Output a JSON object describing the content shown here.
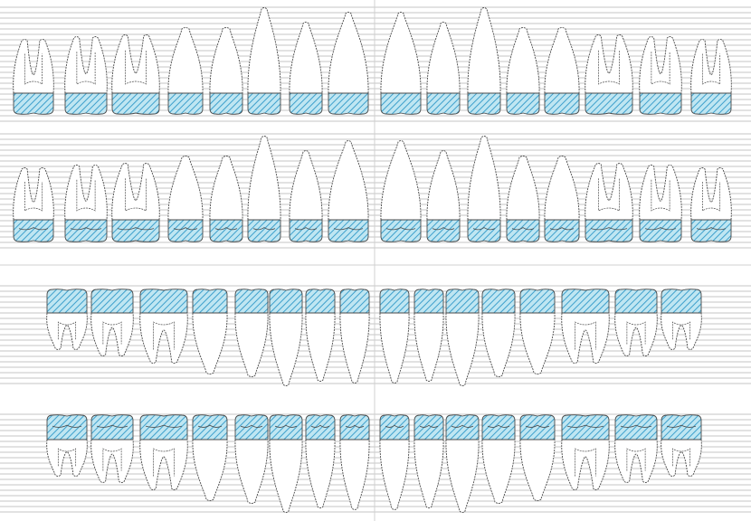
{
  "diagram": {
    "colors": {
      "background": "#ffffff",
      "grid_line": "#c6c6c6",
      "divider": "#d0d0d0",
      "outline": "#4a4a4a",
      "hatch_fill": "#bfe6f2",
      "hatch_line": "#3ea0cc"
    },
    "rows": [
      {
        "id": "upper-buccal",
        "jaw": "upper",
        "view": "buccal",
        "teeth": [
          "molar3",
          "molar2",
          "molar1",
          "premolar2",
          "premolar1",
          "canine",
          "incisor-lateral",
          "incisor-central",
          "incisor-central",
          "incisor-lateral",
          "canine",
          "premolar1",
          "premolar2",
          "molar1",
          "molar2",
          "molar3"
        ]
      },
      {
        "id": "upper-occlusal",
        "jaw": "upper",
        "view": "occlusal",
        "teeth": [
          "molar3",
          "molar2",
          "molar1",
          "premolar2",
          "premolar1",
          "canine",
          "incisor-lateral",
          "incisor-central",
          "incisor-central",
          "incisor-lateral",
          "canine",
          "premolar1",
          "premolar2",
          "molar1",
          "molar2",
          "molar3"
        ]
      },
      {
        "id": "lower-occlusal",
        "jaw": "lower",
        "view": "occlusal",
        "teeth": [
          "molar3",
          "molar2",
          "molar1",
          "premolar2",
          "premolar1",
          "canine",
          "incisor-lateral",
          "incisor-central",
          "incisor-central",
          "incisor-lateral",
          "canine",
          "premolar1",
          "premolar2",
          "molar1",
          "molar2",
          "molar3"
        ]
      },
      {
        "id": "lower-buccal",
        "jaw": "lower",
        "view": "buccal",
        "teeth": [
          "molar3",
          "molar2",
          "molar1",
          "premolar2",
          "premolar1",
          "canine",
          "incisor-lateral",
          "incisor-central",
          "incisor-central",
          "incisor-lateral",
          "canine",
          "premolar1",
          "premolar2",
          "molar1",
          "molar2",
          "molar3"
        ]
      }
    ]
  }
}
